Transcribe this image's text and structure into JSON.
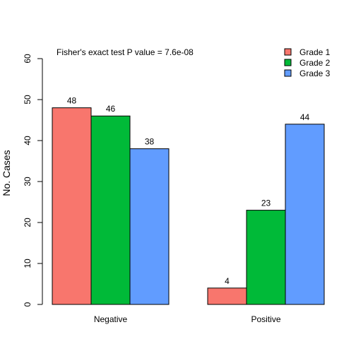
{
  "chart_data": {
    "type": "bar",
    "categories": [
      "Negative",
      "Positive"
    ],
    "series": [
      {
        "name": "Grade 1",
        "values": [
          48,
          4
        ],
        "color": "#F8766D"
      },
      {
        "name": "Grade 2",
        "values": [
          46,
          23
        ],
        "color": "#00BA38"
      },
      {
        "name": "Grade 3",
        "values": [
          38,
          44
        ],
        "color": "#619CFF"
      }
    ],
    "data_labels": [
      [
        "48",
        "4"
      ],
      [
        "46",
        "23"
      ],
      [
        "38",
        "44"
      ]
    ],
    "ylabel": "No. Cases",
    "xlabel": "",
    "ylim": [
      0,
      60
    ],
    "yticks": [
      0,
      10,
      20,
      30,
      40,
      50,
      60
    ],
    "annotation": "Fisher's exact test P value = 7.6e-08",
    "legend_position": "top-right",
    "grid": false
  }
}
